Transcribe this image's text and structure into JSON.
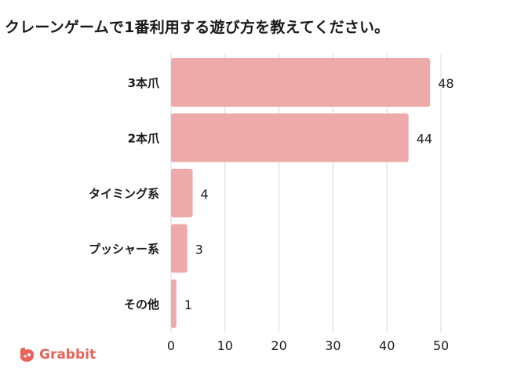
{
  "title": "クレーンゲームで1番利用する遊び方を教えてください。",
  "logo": {
    "text": "Grabbit",
    "color": "#e8645a"
  },
  "chart_data": {
    "type": "bar",
    "orientation": "horizontal",
    "categories": [
      "3本爪",
      "2本爪",
      "タイミング系",
      "プッシャー系",
      "その他"
    ],
    "values": [
      48,
      44,
      4,
      3,
      1
    ],
    "xlim": [
      0,
      50
    ],
    "xticks": [
      0,
      10,
      20,
      30,
      40,
      50
    ],
    "grid": true,
    "bar_color": "#eeaaaa",
    "title": "クレーンゲームで1番利用する遊び方を教えてください。"
  }
}
